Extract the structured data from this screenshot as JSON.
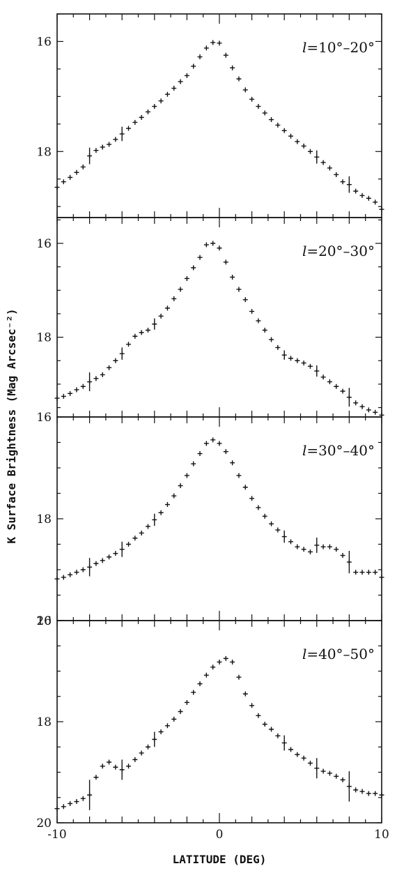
{
  "figure": {
    "ylabel": "K Surface Brightness (Mag Arcsec⁻²)",
    "xlabel": "LATITUDE (DEG)"
  },
  "chart_data": [
    {
      "type": "scatter",
      "panel_label": "l=10°–20°",
      "label_prefix": "l",
      "label_suffix": "=10°–20°",
      "xlim": [
        -10,
        10
      ],
      "ylim": [
        19.2,
        15.5
      ],
      "y_inverted": true,
      "yticks": [
        16,
        18
      ],
      "xticks": [
        -10,
        0,
        10
      ],
      "xtick_labels_shown": false,
      "x": [
        -10,
        -9.6,
        -9.2,
        -8.8,
        -8.4,
        -8.0,
        -7.6,
        -7.2,
        -6.8,
        -6.4,
        -6.0,
        -5.6,
        -5.2,
        -4.8,
        -4.4,
        -4.0,
        -3.6,
        -3.2,
        -2.8,
        -2.4,
        -2.0,
        -1.6,
        -1.2,
        -0.8,
        -0.4,
        0.0,
        0.4,
        0.8,
        1.2,
        1.6,
        2.0,
        2.4,
        2.8,
        3.2,
        3.6,
        4.0,
        4.4,
        4.8,
        5.2,
        5.6,
        6.0,
        6.4,
        6.8,
        7.2,
        7.6,
        8.0,
        8.4,
        8.8,
        9.2,
        9.6,
        10.0
      ],
      "y": [
        18.65,
        18.55,
        18.47,
        18.38,
        18.28,
        18.08,
        17.98,
        17.92,
        17.87,
        17.78,
        17.68,
        17.58,
        17.47,
        17.38,
        17.28,
        17.18,
        17.08,
        16.96,
        16.85,
        16.73,
        16.62,
        16.45,
        16.28,
        16.12,
        16.02,
        16.03,
        16.25,
        16.48,
        16.68,
        16.88,
        17.05,
        17.18,
        17.3,
        17.42,
        17.52,
        17.62,
        17.72,
        17.82,
        17.9,
        18.0,
        18.1,
        18.2,
        18.3,
        18.42,
        18.55,
        18.6,
        18.72,
        18.8,
        18.85,
        18.92,
        19.05
      ],
      "errorbars": [
        {
          "x": -8.0,
          "y": 18.08,
          "err": 0.15
        },
        {
          "x": -6.0,
          "y": 17.68,
          "err": 0.13
        },
        {
          "x": 6.0,
          "y": 18.1,
          "err": 0.12
        },
        {
          "x": 8.0,
          "y": 18.6,
          "err": 0.15
        }
      ]
    },
    {
      "type": "scatter",
      "panel_label": "l=20°–30°",
      "label_prefix": "l",
      "label_suffix": "=20°–30°",
      "xlim": [
        -10,
        10
      ],
      "ylim": [
        19.7,
        15.45
      ],
      "y_inverted": true,
      "yticks": [
        16,
        18
      ],
      "xticks": [
        -10,
        0,
        10
      ],
      "xtick_labels_shown": false,
      "x": [
        -10,
        -9.6,
        -9.2,
        -8.8,
        -8.4,
        -8.0,
        -7.6,
        -7.2,
        -6.8,
        -6.4,
        -6.0,
        -5.6,
        -5.2,
        -4.8,
        -4.4,
        -4.0,
        -3.6,
        -3.2,
        -2.8,
        -2.4,
        -2.0,
        -1.6,
        -1.2,
        -0.8,
        -0.4,
        0.0,
        0.4,
        0.8,
        1.2,
        1.6,
        2.0,
        2.4,
        2.8,
        3.2,
        3.6,
        4.0,
        4.4,
        4.8,
        5.2,
        5.6,
        6.0,
        6.4,
        6.8,
        7.2,
        7.6,
        8.0,
        8.4,
        8.8,
        9.2,
        9.6,
        10.0
      ],
      "y": [
        19.3,
        19.26,
        19.2,
        19.12,
        19.05,
        18.95,
        18.88,
        18.8,
        18.65,
        18.5,
        18.35,
        18.15,
        17.98,
        17.9,
        17.85,
        17.72,
        17.55,
        17.38,
        17.18,
        16.98,
        16.75,
        16.52,
        16.3,
        16.03,
        16.0,
        16.1,
        16.4,
        16.72,
        16.98,
        17.2,
        17.45,
        17.65,
        17.85,
        18.05,
        18.22,
        18.38,
        18.45,
        18.5,
        18.55,
        18.62,
        18.72,
        18.85,
        18.95,
        19.05,
        19.15,
        19.28,
        19.4,
        19.48,
        19.55,
        19.6,
        19.66
      ],
      "errorbars": [
        {
          "x": -8.0,
          "y": 18.95,
          "err": 0.2
        },
        {
          "x": -6.0,
          "y": 18.35,
          "err": 0.13
        },
        {
          "x": -4.0,
          "y": 17.72,
          "err": 0.12
        },
        {
          "x": 4.0,
          "y": 18.38,
          "err": 0.1
        },
        {
          "x": 6.0,
          "y": 18.72,
          "err": 0.12
        },
        {
          "x": 8.0,
          "y": 19.28,
          "err": 0.2
        }
      ]
    },
    {
      "type": "scatter",
      "panel_label": "l=30°–40°",
      "label_prefix": "l",
      "label_suffix": "=30°–40°",
      "xlim": [
        -10,
        10
      ],
      "ylim": [
        20,
        16
      ],
      "y_inverted": true,
      "yticks": [
        16,
        18,
        20
      ],
      "xticks": [
        -10,
        0,
        10
      ],
      "xtick_labels_shown": false,
      "x": [
        -10,
        -9.6,
        -9.2,
        -8.8,
        -8.4,
        -8.0,
        -7.6,
        -7.2,
        -6.8,
        -6.4,
        -6.0,
        -5.6,
        -5.2,
        -4.8,
        -4.4,
        -4.0,
        -3.6,
        -3.2,
        -2.8,
        -2.4,
        -2.0,
        -1.6,
        -1.2,
        -0.8,
        -0.4,
        0.0,
        0.4,
        0.8,
        1.2,
        1.6,
        2.0,
        2.4,
        2.8,
        3.2,
        3.6,
        4.0,
        4.4,
        4.8,
        5.2,
        5.6,
        6.0,
        6.4,
        6.8,
        7.2,
        7.6,
        8.0,
        8.4,
        8.8,
        9.2,
        9.6,
        10.0
      ],
      "y": [
        19.18,
        19.15,
        19.1,
        19.05,
        19.0,
        18.95,
        18.88,
        18.82,
        18.75,
        18.68,
        18.6,
        18.5,
        18.38,
        18.28,
        18.15,
        18.02,
        17.88,
        17.72,
        17.55,
        17.35,
        17.15,
        16.92,
        16.72,
        16.52,
        16.45,
        16.52,
        16.68,
        16.9,
        17.15,
        17.38,
        17.6,
        17.78,
        17.95,
        18.1,
        18.22,
        18.35,
        18.45,
        18.55,
        18.6,
        18.65,
        18.52,
        18.55,
        18.55,
        18.6,
        18.72,
        18.85,
        19.05,
        19.05,
        19.05,
        19.05,
        19.15
      ],
      "errorbars": [
        {
          "x": -8.0,
          "y": 18.95,
          "err": 0.18
        },
        {
          "x": -6.0,
          "y": 18.6,
          "err": 0.15
        },
        {
          "x": -4.0,
          "y": 18.02,
          "err": 0.12
        },
        {
          "x": 4.0,
          "y": 18.35,
          "err": 0.12
        },
        {
          "x": 6.0,
          "y": 18.52,
          "err": 0.15
        },
        {
          "x": 8.0,
          "y": 18.85,
          "err": 0.22
        }
      ]
    },
    {
      "type": "scatter",
      "panel_label": "l=40°–50°",
      "label_prefix": "l",
      "label_suffix": "=40°–50°",
      "xlim": [
        -10,
        10
      ],
      "ylim": [
        20,
        16
      ],
      "y_inverted": true,
      "yticks": [
        16,
        18,
        20
      ],
      "xticks": [
        -10,
        0,
        10
      ],
      "xtick_labels": [
        "-10",
        "0",
        "10"
      ],
      "xtick_labels_shown": true,
      "x": [
        -10,
        -9.6,
        -9.2,
        -8.8,
        -8.4,
        -8.0,
        -7.6,
        -7.2,
        -6.8,
        -6.4,
        -6.0,
        -5.6,
        -5.2,
        -4.8,
        -4.4,
        -4.0,
        -3.6,
        -3.2,
        -2.8,
        -2.4,
        -2.0,
        -1.6,
        -1.2,
        -0.8,
        -0.4,
        0.0,
        0.4,
        0.8,
        1.2,
        1.6,
        2.0,
        2.4,
        2.8,
        3.2,
        3.6,
        4.0,
        4.4,
        4.8,
        5.2,
        5.6,
        6.0,
        6.4,
        6.8,
        7.2,
        7.6,
        8.0,
        8.4,
        8.8,
        9.2,
        9.6,
        10.0
      ],
      "y": [
        19.72,
        19.68,
        19.62,
        19.58,
        19.52,
        19.45,
        19.1,
        18.88,
        18.8,
        18.9,
        18.95,
        18.88,
        18.75,
        18.62,
        18.5,
        18.35,
        18.2,
        18.08,
        17.95,
        17.8,
        17.62,
        17.42,
        17.25,
        17.08,
        16.92,
        16.82,
        16.75,
        16.82,
        17.12,
        17.45,
        17.68,
        17.88,
        18.05,
        18.15,
        18.28,
        18.42,
        18.55,
        18.65,
        18.72,
        18.82,
        18.92,
        18.98,
        19.02,
        19.08,
        19.15,
        19.28,
        19.35,
        19.38,
        19.42,
        19.42,
        19.45
      ],
      "errorbars": [
        {
          "x": -8.0,
          "y": 19.45,
          "err": 0.3
        },
        {
          "x": -6.0,
          "y": 18.95,
          "err": 0.2
        },
        {
          "x": -4.0,
          "y": 18.35,
          "err": 0.15
        },
        {
          "x": 4.0,
          "y": 18.42,
          "err": 0.15
        },
        {
          "x": 6.0,
          "y": 18.92,
          "err": 0.2
        },
        {
          "x": 8.0,
          "y": 19.28,
          "err": 0.3
        }
      ]
    }
  ]
}
